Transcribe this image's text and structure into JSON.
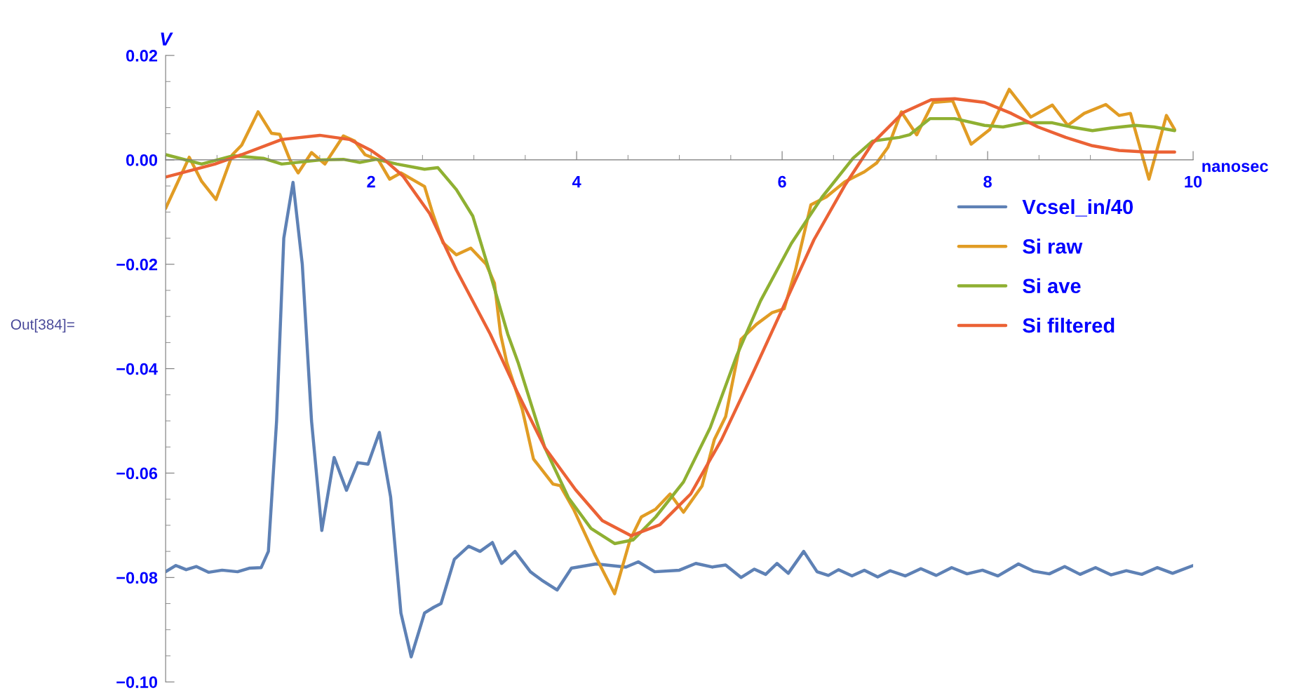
{
  "chart_data": {
    "type": "line",
    "xlabel": "nanosec",
    "ylabel": "V",
    "annotations": [
      "Out[384]="
    ],
    "xlim": [
      0,
      10
    ],
    "ylim": [
      -0.1,
      0.02
    ],
    "xticks": [
      2,
      4,
      6,
      8,
      10
    ],
    "yticks": [
      {
        "value": 0.02,
        "label": "0.02"
      },
      {
        "value": 0.0,
        "label": "0.00"
      },
      {
        "value": -0.02,
        "label": "−0.02"
      },
      {
        "value": -0.04,
        "label": "−0.04"
      },
      {
        "value": -0.06,
        "label": "−0.06"
      },
      {
        "value": -0.08,
        "label": "−0.08"
      },
      {
        "value": -0.1,
        "label": "−0.10"
      }
    ],
    "grid": false,
    "legend": "top right",
    "marker": "none",
    "line_style": "solid",
    "series": [
      {
        "name": "Vcsel_in/40",
        "color": "#5e81b5",
        "x": [
          0,
          0.1,
          0.2,
          0.3,
          0.42,
          0.55,
          0.7,
          0.82,
          0.93,
          1.0,
          1.08,
          1.15,
          1.24,
          1.33,
          1.42,
          1.52,
          1.64,
          1.76,
          1.87,
          1.97,
          2.08,
          2.19,
          2.29,
          2.39,
          2.52,
          2.61,
          2.68,
          2.81,
          2.95,
          3.06,
          3.18,
          3.27,
          3.4,
          3.55,
          3.66,
          3.81,
          3.95,
          4.19,
          4.48,
          4.6,
          4.76,
          5.0,
          5.16,
          5.32,
          5.45,
          5.6,
          5.73,
          5.84,
          5.95,
          6.06,
          6.21,
          6.34,
          6.45,
          6.55,
          6.68,
          6.8,
          6.93,
          7.05,
          7.2,
          7.35,
          7.5,
          7.65,
          7.8,
          7.95,
          8.1,
          8.3,
          8.45,
          8.6,
          8.75,
          8.9,
          9.05,
          9.2,
          9.35,
          9.5,
          9.65,
          9.8,
          10
        ],
        "values": [
          -0.0789,
          -0.0777,
          -0.0785,
          -0.0779,
          -0.079,
          -0.0786,
          -0.0789,
          -0.0782,
          -0.0781,
          -0.075,
          -0.05,
          -0.015,
          -0.0043,
          -0.02,
          -0.05,
          -0.071,
          -0.057,
          -0.0633,
          -0.058,
          -0.0583,
          -0.0522,
          -0.0646,
          -0.0868,
          -0.0952,
          -0.0868,
          -0.0857,
          -0.085,
          -0.0765,
          -0.074,
          -0.075,
          -0.0733,
          -0.0773,
          -0.075,
          -0.0789,
          -0.0805,
          -0.0824,
          -0.0782,
          -0.0774,
          -0.078,
          -0.077,
          -0.0789,
          -0.0786,
          -0.0773,
          -0.078,
          -0.0776,
          -0.08,
          -0.0784,
          -0.0794,
          -0.0773,
          -0.0792,
          -0.075,
          -0.0789,
          -0.0796,
          -0.0785,
          -0.0797,
          -0.0786,
          -0.0799,
          -0.0787,
          -0.0797,
          -0.0783,
          -0.0796,
          -0.0781,
          -0.0793,
          -0.0786,
          -0.0797,
          -0.0774,
          -0.0788,
          -0.0793,
          -0.0779,
          -0.0794,
          -0.0781,
          -0.0795,
          -0.0787,
          -0.0794,
          -0.0781,
          -0.0792,
          -0.0777
        ]
      },
      {
        "name": "Si raw",
        "color": "#e19c24",
        "x": [
          0,
          0.23,
          0.35,
          0.49,
          0.65,
          0.74,
          0.9,
          1.03,
          1.11,
          1.21,
          1.29,
          1.42,
          1.55,
          1.73,
          1.84,
          1.94,
          2.07,
          2.18,
          2.29,
          2.44,
          2.52,
          2.6,
          2.7,
          2.83,
          2.97,
          3.12,
          3.2,
          3.26,
          3.32,
          3.47,
          3.58,
          3.77,
          3.84,
          3.97,
          4.18,
          4.37,
          4.52,
          4.63,
          4.77,
          4.91,
          5.04,
          5.22,
          5.34,
          5.45,
          5.6,
          5.75,
          5.9,
          6.02,
          6.13,
          6.28,
          6.43,
          6.61,
          6.8,
          6.92,
          7.03,
          7.16,
          7.31,
          7.47,
          7.66,
          7.84,
          8.02,
          8.21,
          8.42,
          8.63,
          8.78,
          8.94,
          9.15,
          9.28,
          9.39,
          9.57,
          9.74,
          9.82
        ],
        "values": [
          -0.0093,
          0.0005,
          -0.0041,
          -0.0076,
          0.001,
          0.0028,
          0.0092,
          0.0051,
          0.0049,
          0.0,
          -0.0025,
          0.0014,
          -0.0008,
          0.0046,
          0.0036,
          0.001,
          0.0,
          -0.0037,
          -0.0025,
          -0.0042,
          -0.0051,
          -0.0103,
          -0.0159,
          -0.0182,
          -0.0169,
          -0.02,
          -0.0236,
          -0.0334,
          -0.0388,
          -0.0477,
          -0.0573,
          -0.0621,
          -0.0624,
          -0.0669,
          -0.0758,
          -0.0831,
          -0.0728,
          -0.0684,
          -0.0669,
          -0.064,
          -0.0675,
          -0.0625,
          -0.0536,
          -0.0492,
          -0.0344,
          -0.0315,
          -0.0293,
          -0.0285,
          -0.0211,
          -0.0086,
          -0.0071,
          -0.0042,
          -0.0023,
          -0.0006,
          0.0024,
          0.0092,
          0.0048,
          0.011,
          0.0113,
          0.003,
          0.0058,
          0.0135,
          0.0082,
          0.0105,
          0.0066,
          0.0089,
          0.0106,
          0.0085,
          0.0089,
          -0.0037,
          0.0085,
          0.0058
        ]
      },
      {
        "name": "Si ave",
        "color": "#8fb032",
        "x": [
          0,
          0.35,
          0.66,
          0.95,
          1.13,
          1.52,
          1.73,
          1.89,
          2.05,
          2.25,
          2.52,
          2.65,
          2.83,
          2.99,
          3.14,
          3.33,
          3.43,
          3.69,
          3.92,
          4.14,
          4.37,
          4.55,
          4.77,
          5.04,
          5.3,
          5.56,
          5.79,
          6.09,
          6.39,
          6.69,
          6.88,
          7.14,
          7.24,
          7.44,
          7.68,
          7.97,
          8.15,
          8.36,
          8.63,
          8.81,
          9.02,
          9.2,
          9.44,
          9.62,
          9.82
        ],
        "values": [
          0.001,
          -0.0008,
          0.0008,
          0.0003,
          -0.0008,
          0.0,
          0.0001,
          -0.0005,
          0.0001,
          -0.0008,
          -0.0018,
          -0.0015,
          -0.0057,
          -0.0108,
          -0.0206,
          -0.0334,
          -0.0388,
          -0.0551,
          -0.0647,
          -0.0706,
          -0.0735,
          -0.0728,
          -0.0684,
          -0.0617,
          -0.0513,
          -0.0374,
          -0.027,
          -0.016,
          -0.0071,
          0.0003,
          0.0036,
          0.0043,
          0.0048,
          0.0079,
          0.0079,
          0.0066,
          0.0063,
          0.0071,
          0.0071,
          0.0063,
          0.0056,
          0.0061,
          0.0066,
          0.0063,
          0.0056
        ]
      },
      {
        "name": "Si filtered",
        "color": "#eb6235",
        "x": [
          0,
          0.48,
          0.74,
          1.13,
          1.5,
          1.79,
          2.0,
          2.13,
          2.31,
          2.57,
          2.83,
          3.16,
          3.43,
          3.69,
          3.99,
          4.25,
          4.53,
          4.81,
          5.11,
          5.41,
          5.71,
          6.02,
          6.31,
          6.61,
          6.88,
          7.18,
          7.45,
          7.68,
          7.97,
          8.23,
          8.49,
          8.76,
          9.02,
          9.28,
          9.55,
          9.82
        ],
        "values": [
          -0.0033,
          -0.0008,
          0.001,
          0.0039,
          0.0047,
          0.0039,
          0.0018,
          0.0,
          -0.0031,
          -0.0103,
          -0.0211,
          -0.0334,
          -0.0448,
          -0.0551,
          -0.0632,
          -0.0691,
          -0.072,
          -0.0699,
          -0.064,
          -0.0536,
          -0.0411,
          -0.0278,
          -0.0153,
          -0.0049,
          0.0032,
          0.0091,
          0.0115,
          0.0117,
          0.011,
          0.0089,
          0.0063,
          0.0043,
          0.0027,
          0.0018,
          0.0015,
          0.0015
        ]
      }
    ]
  }
}
